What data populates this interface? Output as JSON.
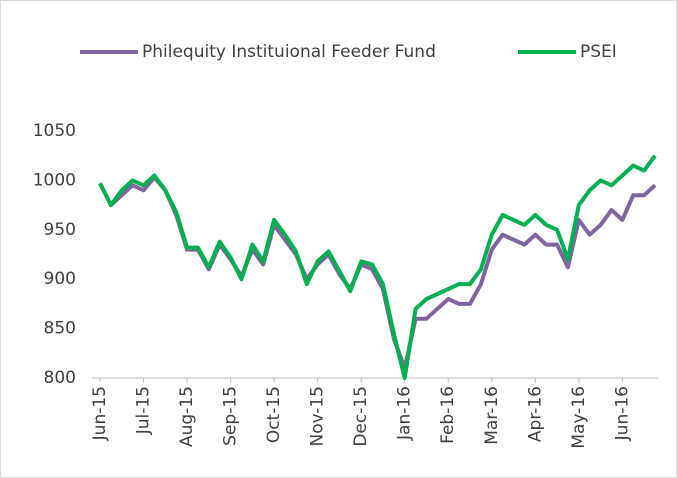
{
  "chart_data": {
    "type": "line",
    "categories": [
      "Jun-15",
      null,
      null,
      null,
      "Jul-15",
      null,
      null,
      null,
      "Aug-15",
      null,
      null,
      null,
      "Sep-15",
      null,
      null,
      null,
      "Oct-15",
      null,
      null,
      null,
      "Nov-15",
      null,
      null,
      null,
      "Dec-15",
      null,
      null,
      null,
      "Jan-16",
      null,
      null,
      null,
      "Feb-16",
      null,
      null,
      null,
      "Mar-16",
      null,
      null,
      null,
      "Apr-16",
      null,
      null,
      null,
      "May-16",
      null,
      null,
      null,
      "Jun-16",
      null,
      null,
      null
    ],
    "series": [
      {
        "name": "Philequity Instituional Feeder Fund",
        "color": "#8064a2",
        "values": [
          997,
          975,
          985,
          995,
          990,
          1003,
          990,
          965,
          930,
          930,
          910,
          935,
          920,
          903,
          930,
          915,
          955,
          940,
          925,
          900,
          915,
          925,
          905,
          890,
          915,
          910,
          890,
          840,
          810,
          860,
          860,
          870,
          880,
          875,
          875,
          895,
          930,
          945,
          940,
          935,
          945,
          935,
          935,
          912,
          960,
          945,
          955,
          970,
          960,
          985,
          985,
          995
        ]
      },
      {
        "name": "PSEI",
        "color": "#00b050",
        "values": [
          997,
          975,
          990,
          1000,
          995,
          1005,
          990,
          968,
          932,
          932,
          912,
          938,
          922,
          900,
          935,
          918,
          960,
          945,
          928,
          895,
          918,
          928,
          908,
          888,
          918,
          915,
          895,
          845,
          800,
          870,
          880,
          885,
          890,
          895,
          895,
          910,
          945,
          965,
          960,
          955,
          965,
          955,
          950,
          920,
          975,
          990,
          1000,
          995,
          1005,
          1015,
          1010,
          1025
        ]
      }
    ],
    "ylim": [
      800,
      1050
    ],
    "yticks": [
      800,
      850,
      900,
      950,
      1000,
      1050
    ],
    "legend": "top"
  }
}
